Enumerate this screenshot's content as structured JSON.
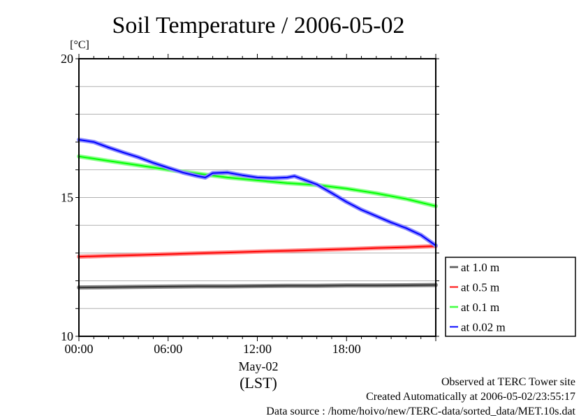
{
  "chart_data": {
    "type": "line",
    "title": "Soil Temperature / 2006-05-02",
    "ylabel": "[°C]",
    "xlabel": "(LST)",
    "x_date_label": "May-02",
    "ylim": [
      10,
      20
    ],
    "xlim_hours": [
      0,
      24
    ],
    "y_ticks": [
      {
        "value": 10,
        "label": "10"
      },
      {
        "value": 15,
        "label": "15"
      },
      {
        "value": 20,
        "label": "20"
      }
    ],
    "y_gridlines": [
      11,
      12,
      13,
      14,
      15,
      16,
      17,
      18,
      19
    ],
    "x_ticks": [
      {
        "value": 0,
        "label": "00:00"
      },
      {
        "value": 6,
        "label": "06:00"
      },
      {
        "value": 12,
        "label": "12:00"
      },
      {
        "value": 18,
        "label": "18:00"
      }
    ],
    "x_minor_tick_step_hours": 1,
    "grid": true,
    "legend_position": "right",
    "series": [
      {
        "name": "at 1.0 m",
        "color": "#333333",
        "halo": "#8a8a8a",
        "x": [
          0,
          2,
          4,
          6,
          8,
          10,
          12,
          14,
          16,
          18,
          20,
          22,
          24
        ],
        "values": [
          11.76,
          11.77,
          11.78,
          11.79,
          11.8,
          11.8,
          11.81,
          11.82,
          11.82,
          11.83,
          11.83,
          11.84,
          11.85
        ]
      },
      {
        "name": "at 0.5 m",
        "color": "#ff0000",
        "halo": "#ff8a8a",
        "x": [
          0,
          2,
          4,
          6,
          8,
          10,
          12,
          14,
          16,
          18,
          20,
          22,
          24
        ],
        "values": [
          12.87,
          12.9,
          12.93,
          12.96,
          12.99,
          13.02,
          13.05,
          13.08,
          13.11,
          13.14,
          13.18,
          13.21,
          13.25
        ]
      },
      {
        "name": "at 0.1 m",
        "color": "#00ff00",
        "halo": "#8aff8a",
        "x": [
          0,
          2,
          4,
          6,
          8,
          10,
          12,
          14,
          16,
          18,
          20,
          22,
          24
        ],
        "values": [
          16.48,
          16.32,
          16.16,
          16.0,
          15.86,
          15.72,
          15.62,
          15.52,
          15.45,
          15.32,
          15.15,
          14.95,
          14.69
        ]
      },
      {
        "name": "at 0.02 m",
        "color": "#0000ff",
        "halo": "#8a8aff",
        "x": [
          0,
          1,
          2,
          3,
          4,
          5,
          6,
          7,
          8,
          8.5,
          9,
          10,
          11,
          12,
          13,
          14,
          14.5,
          15,
          16,
          17,
          18,
          19,
          20,
          21,
          22,
          23,
          24
        ],
        "values": [
          17.08,
          17.0,
          16.8,
          16.62,
          16.45,
          16.25,
          16.07,
          15.9,
          15.77,
          15.72,
          15.88,
          15.9,
          15.8,
          15.72,
          15.7,
          15.72,
          15.77,
          15.67,
          15.47,
          15.16,
          14.84,
          14.56,
          14.33,
          14.1,
          13.9,
          13.65,
          13.27
        ]
      }
    ]
  },
  "footer": {
    "line1": "Observed at TERC Tower site",
    "line2": "Created Automatically at 2006-05-02/23:55:17",
    "line3": "Data source : /home/hoivo/new/TERC-data/sorted_data/MET.10s.dat"
  }
}
